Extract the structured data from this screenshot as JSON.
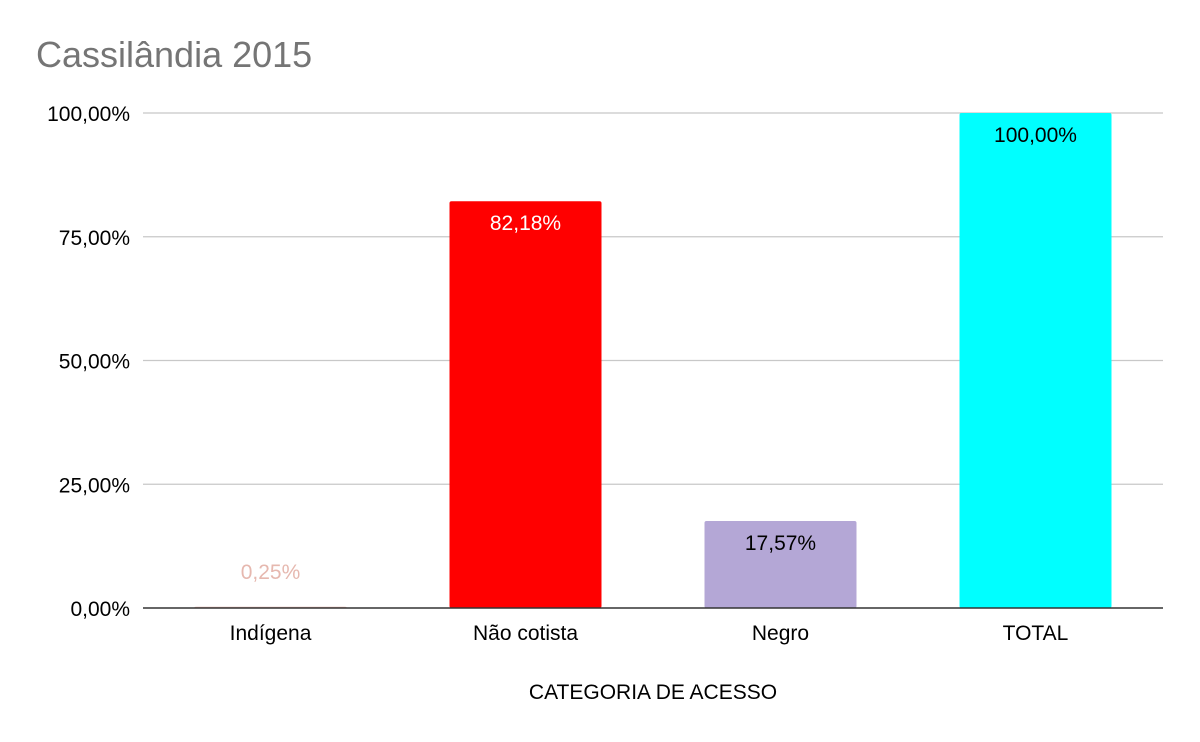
{
  "chart_data": {
    "type": "bar",
    "title": "Cassilândia 2015",
    "xlabel": "CATEGORIA DE ACESSO",
    "ylabel": "",
    "categories": [
      "Indígena",
      "Não cotista",
      "Negro",
      "TOTAL"
    ],
    "values": [
      0.25,
      82.18,
      17.57,
      100.0
    ],
    "value_labels": [
      "0,25%",
      "82,18%",
      "17,57%",
      "100,00%"
    ],
    "bar_colors": [
      "#e6b8af",
      "#ff0000",
      "#b4a7d6",
      "#00ffff"
    ],
    "value_label_colors": [
      "#e6b8af",
      "#ffffff",
      "#000000",
      "#000000"
    ],
    "ylim": [
      0,
      100
    ],
    "yticks": [
      0,
      25,
      50,
      75,
      100
    ],
    "ytick_labels": [
      "0,00%",
      "25,00%",
      "50,00%",
      "75,00%",
      "100,00%"
    ],
    "grid": true,
    "legend": "none"
  }
}
